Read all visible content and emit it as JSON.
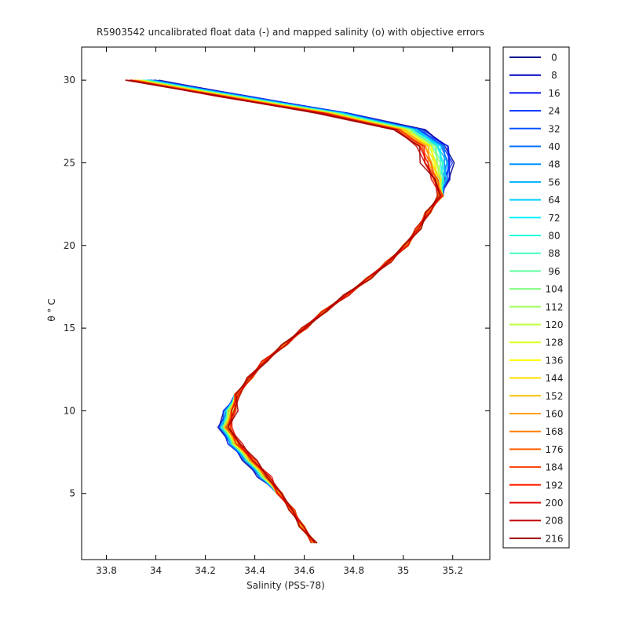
{
  "chart_data": {
    "type": "line",
    "title": "R5903542 uncalibrated float data (-) and mapped salinity (o) with objective errors",
    "xlabel": "Salinity (PSS-78)",
    "ylabel": "θ ° C",
    "xlim": [
      33.7,
      35.35
    ],
    "ylim": [
      1,
      32
    ],
    "xticks": [
      "33.8",
      "34",
      "34.2",
      "34.4",
      "34.6",
      "34.8",
      "35",
      "35.2"
    ],
    "yticks": [
      "5",
      "10",
      "15",
      "20",
      "25",
      "30"
    ],
    "grid": false,
    "legend_position": "right-outside",
    "legend": [
      "0",
      "8",
      "16",
      "24",
      "32",
      "40",
      "48",
      "56",
      "64",
      "72",
      "80",
      "88",
      "96",
      "104",
      "112",
      "120",
      "128",
      "136",
      "144",
      "152",
      "160",
      "168",
      "176",
      "184",
      "192",
      "200",
      "208",
      "216"
    ],
    "legend_colors": [
      "#00008f",
      "#0000c0",
      "#0010f0",
      "#0030ff",
      "#0050ff",
      "#0070ff",
      "#0090ff",
      "#00b0ff",
      "#00d0ff",
      "#00f0ff",
      "#20ffdf",
      "#40ffbf",
      "#60ff9f",
      "#80ff7f",
      "#a0ff5f",
      "#c0ff3f",
      "#e0ff1f",
      "#ffff00",
      "#ffdf00",
      "#ffbf00",
      "#ff9f00",
      "#ff7f00",
      "#ff5f00",
      "#ff3f00",
      "#ff1f00",
      "#e00000",
      "#c00000",
      "#9a0000"
    ],
    "series_profile": {
      "theta": [
        2,
        3,
        4,
        5,
        6,
        7,
        8,
        9,
        10,
        11,
        12,
        13,
        14,
        15,
        16,
        17,
        18,
        19,
        20,
        21,
        22,
        23,
        24,
        25,
        26,
        27,
        28,
        29,
        30
      ],
      "salinity": [
        34.64,
        34.59,
        34.55,
        34.5,
        34.44,
        34.38,
        34.32,
        34.28,
        34.3,
        34.33,
        34.38,
        34.44,
        34.52,
        34.6,
        34.68,
        34.77,
        34.86,
        34.94,
        35.01,
        35.06,
        35.1,
        35.15,
        35.18,
        35.2,
        35.18,
        35.08,
        34.78,
        34.38,
        34.0
      ]
    }
  }
}
